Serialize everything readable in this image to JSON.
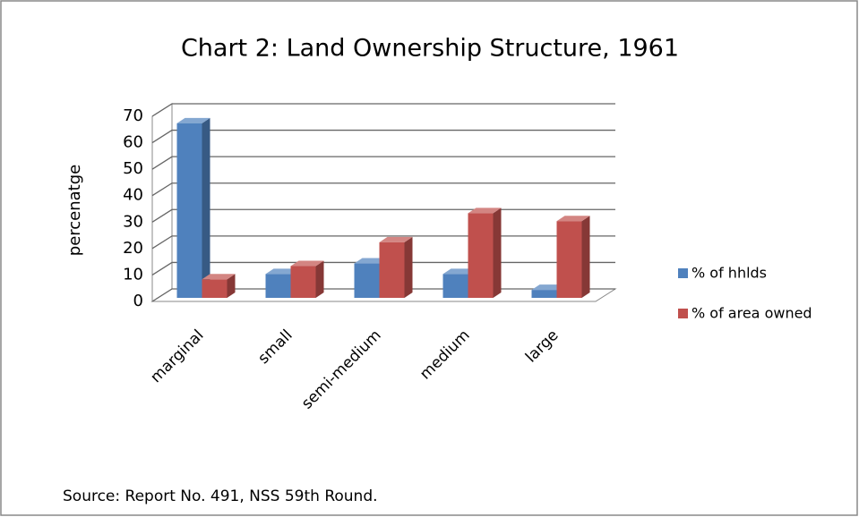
{
  "chart_data": {
    "type": "bar3d",
    "title": "Chart 2: Land Ownership Structure, 1961",
    "y_label": "percenatge",
    "categories": [
      "marginal",
      "small",
      "semi-medium",
      "medium",
      "large"
    ],
    "series": [
      {
        "name": "% of hhlds",
        "color": "#4f81bd",
        "values": [
          66,
          9,
          13,
          9,
          3
        ]
      },
      {
        "name": "% of area owned",
        "color": "#c0504d",
        "values": [
          7,
          12,
          21,
          32,
          29
        ]
      }
    ],
    "ylim": [
      0,
      70
    ],
    "yticks": [
      0,
      10,
      20,
      30,
      40,
      50,
      60,
      70
    ],
    "grid": true,
    "legend": "right",
    "source": "Source: Report No. 491, NSS 59th Round."
  }
}
